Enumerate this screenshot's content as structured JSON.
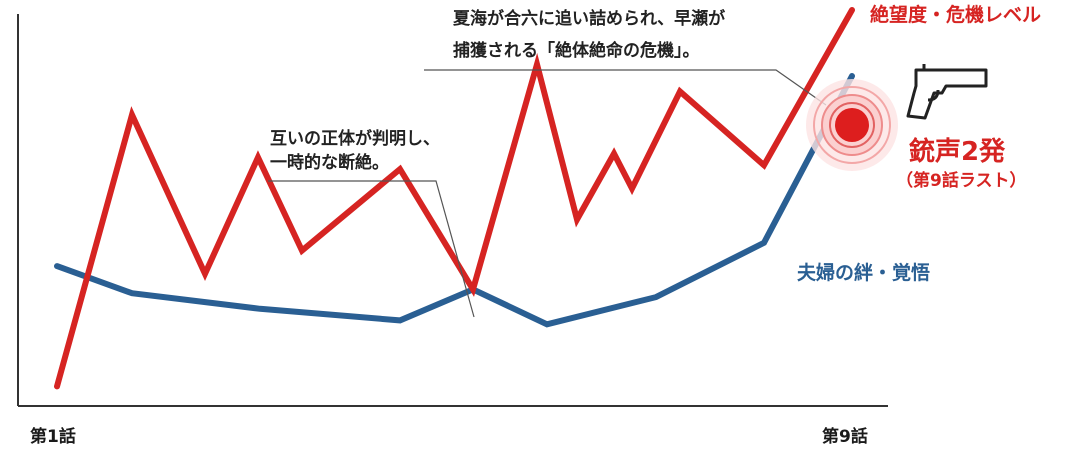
{
  "chart_data": {
    "type": "line",
    "x_tick_labels": [
      "第1話",
      "第9話"
    ],
    "ylim": [
      0,
      100
    ],
    "grid": false,
    "series": [
      {
        "name": "絶望度・危機レベル",
        "color": "#d62422",
        "values": [
          3,
          73,
          32,
          62,
          38,
          59,
          28,
          86,
          46,
          63,
          54,
          79,
          60,
          100
        ]
      },
      {
        "name": "夫婦の絆・覚悟",
        "color": "#2a5f93",
        "values": [
          34,
          27,
          23,
          20,
          28,
          19,
          26,
          40,
          83
        ]
      }
    ],
    "annotations": {
      "reveal": [
        "互いの正体が判明し、",
        "一時的な断絶。"
      ],
      "capture": [
        "夏海が合六に追い詰められ、早瀬が",
        "捕獲される「絶体絶命の危機」。"
      ],
      "gunshot_title": "銃声2発",
      "gunshot_sub": "（第9話ラスト）"
    },
    "icons": {
      "pistol": "pistol-icon",
      "target": "gunshot-target-icon"
    }
  }
}
